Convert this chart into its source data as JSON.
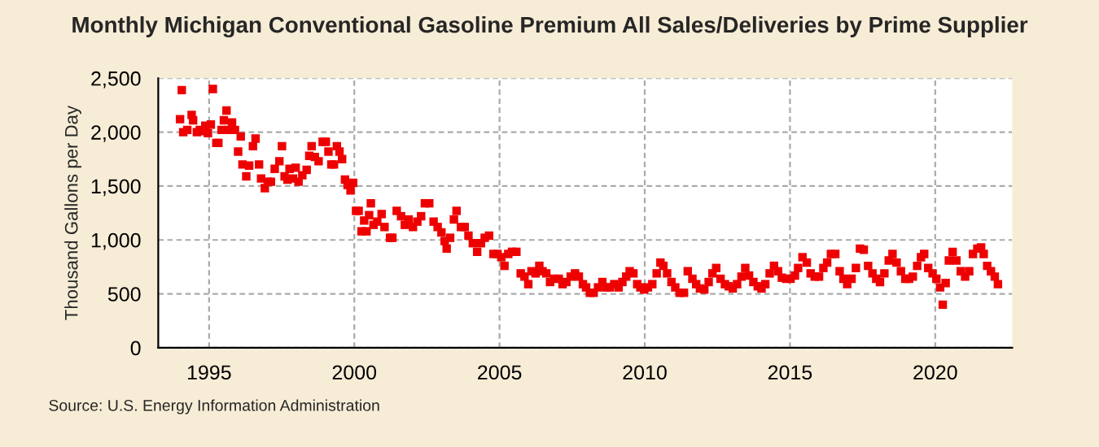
{
  "chart_data": {
    "type": "scatter",
    "title": "Monthly Michigan Conventional Gasoline Premium All Sales/Deliveries by Prime Supplier",
    "ylabel": "Thousand Gallons per Day",
    "annotations": [
      "Source: U.S. Energy Information Administration"
    ],
    "marker": "square",
    "grid": true,
    "legend": false,
    "xlim": [
      1993.25,
      2022.65
    ],
    "xticks": [
      1995,
      2000,
      2005,
      2010,
      2015,
      2020
    ],
    "ylim": [
      0,
      2500
    ],
    "yticks": [
      0,
      500,
      {
        "value": 1000,
        "label": "1,000"
      },
      {
        "value": 1500,
        "label": "1,500"
      },
      {
        "value": 2000,
        "label": "2,000"
      },
      {
        "value": 2500,
        "label": "2,500"
      }
    ],
    "series": [
      {
        "color": "#ee0000",
        "x": [
          1994.0,
          1994.06,
          1994.11,
          1994.25,
          1994.4,
          1994.45,
          1994.58,
          1994.68,
          1994.77,
          1994.87,
          1994.96,
          1995.06,
          1995.13,
          1995.25,
          1995.32,
          1995.43,
          1995.51,
          1995.6,
          1995.66,
          1995.79,
          1995.89,
          1996.0,
          1996.09,
          1996.15,
          1996.28,
          1996.38,
          1996.51,
          1996.6,
          1996.72,
          1996.79,
          1996.92,
          1997.02,
          1997.13,
          1997.26,
          1997.42,
          1997.51,
          1997.6,
          1997.7,
          1997.77,
          1997.89,
          1997.98,
          1998.08,
          1998.21,
          1998.36,
          1998.45,
          1998.53,
          1998.64,
          1998.77,
          1998.91,
          1999.02,
          1999.11,
          1999.21,
          1999.3,
          1999.4,
          1999.49,
          1999.58,
          1999.68,
          1999.77,
          1999.87,
          1999.96,
          2000.06,
          2000.15,
          2000.25,
          2000.34,
          2000.42,
          2000.51,
          2000.57,
          2000.66,
          2000.79,
          2000.94,
          2001.04,
          2001.23,
          2001.31,
          2001.46,
          2001.61,
          2001.74,
          2001.87,
          2002.02,
          2002.17,
          2002.3,
          2002.43,
          2002.58,
          2002.73,
          2002.87,
          2003.0,
          2003.11,
          2003.18,
          2003.3,
          2003.43,
          2003.52,
          2003.67,
          2003.8,
          2003.93,
          2004.08,
          2004.23,
          2004.36,
          2004.49,
          2004.64,
          2004.79,
          2004.93,
          2005.06,
          2005.17,
          2005.3,
          2005.43,
          2005.58,
          2005.73,
          2005.86,
          2005.99,
          2006.1,
          2006.24,
          2006.37,
          2006.48,
          2006.61,
          2006.74,
          2006.89,
          2007.04,
          2007.17,
          2007.3,
          2007.45,
          2007.6,
          2007.73,
          2007.87,
          2007.98,
          2008.11,
          2008.24,
          2008.39,
          2008.54,
          2008.67,
          2008.8,
          2008.95,
          2009.1,
          2009.23,
          2009.36,
          2009.48,
          2009.61,
          2009.74,
          2009.85,
          2009.98,
          2010.11,
          2010.26,
          2010.41,
          2010.54,
          2010.64,
          2010.77,
          2010.92,
          2011.05,
          2011.2,
          2011.35,
          2011.48,
          2011.64,
          2011.77,
          2011.9,
          2012.05,
          2012.2,
          2012.33,
          2012.46,
          2012.61,
          2012.76,
          2012.89,
          2013.03,
          2013.18,
          2013.33,
          2013.46,
          2013.59,
          2013.74,
          2013.89,
          2014.02,
          2014.15,
          2014.3,
          2014.45,
          2014.59,
          2014.72,
          2014.87,
          2015.02,
          2015.17,
          2015.28,
          2015.43,
          2015.58,
          2015.71,
          2015.85,
          2016.0,
          2016.15,
          2016.28,
          2016.41,
          2016.56,
          2016.71,
          2016.84,
          2016.97,
          2017.12,
          2017.27,
          2017.41,
          2017.54,
          2017.69,
          2017.84,
          2017.97,
          2018.1,
          2018.25,
          2018.4,
          2018.53,
          2018.67,
          2018.82,
          2018.97,
          2019.1,
          2019.23,
          2019.38,
          2019.51,
          2019.62,
          2019.76,
          2019.91,
          2020.04,
          2020.17,
          2020.26,
          2020.36,
          2020.47,
          2020.6,
          2020.73,
          2020.88,
          2021.03,
          2021.17,
          2021.3,
          2021.45,
          2021.58,
          2021.67,
          2021.79,
          2021.92,
          2022.05,
          2022.16
        ],
        "values": [
          2120,
          2390,
          2000,
          2020,
          2160,
          2110,
          2000,
          2020,
          2010,
          2060,
          1990,
          2070,
          2400,
          1900,
          1900,
          2020,
          2110,
          2200,
          2020,
          2090,
          2020,
          1820,
          1960,
          1700,
          1590,
          1690,
          1870,
          1940,
          1700,
          1570,
          1480,
          1540,
          1540,
          1660,
          1730,
          1870,
          1590,
          1560,
          1660,
          1570,
          1670,
          1540,
          1600,
          1650,
          1780,
          1870,
          1770,
          1730,
          1910,
          1910,
          1820,
          1700,
          1700,
          1870,
          1820,
          1750,
          1560,
          1510,
          1460,
          1530,
          1270,
          1270,
          1080,
          1180,
          1080,
          1230,
          1340,
          1140,
          1170,
          1240,
          1120,
          1020,
          1020,
          1270,
          1220,
          1140,
          1190,
          1120,
          1170,
          1220,
          1340,
          1340,
          1170,
          1120,
          1070,
          990,
          920,
          1020,
          1190,
          1270,
          1120,
          1120,
          1040,
          970,
          890,
          970,
          1020,
          1040,
          870,
          870,
          840,
          760,
          870,
          890,
          890,
          690,
          660,
          590,
          710,
          690,
          760,
          710,
          690,
          610,
          640,
          640,
          590,
          610,
          660,
          690,
          660,
          590,
          560,
          510,
          510,
          560,
          610,
          560,
          560,
          590,
          560,
          610,
          660,
          710,
          690,
          590,
          560,
          540,
          560,
          590,
          690,
          790,
          760,
          690,
          610,
          560,
          510,
          510,
          710,
          640,
          590,
          550,
          540,
          610,
          690,
          740,
          640,
          590,
          570,
          550,
          590,
          660,
          740,
          670,
          610,
          570,
          550,
          590,
          690,
          760,
          710,
          650,
          640,
          640,
          670,
          740,
          840,
          790,
          690,
          660,
          660,
          740,
          790,
          870,
          870,
          710,
          640,
          590,
          640,
          740,
          920,
          910,
          760,
          690,
          640,
          610,
          690,
          810,
          870,
          790,
          710,
          640,
          640,
          660,
          760,
          840,
          870,
          740,
          690,
          640,
          560,
          400,
          600,
          810,
          890,
          810,
          710,
          660,
          710,
          870,
          920,
          930,
          870,
          760,
          710,
          660,
          590
        ]
      }
    ]
  }
}
